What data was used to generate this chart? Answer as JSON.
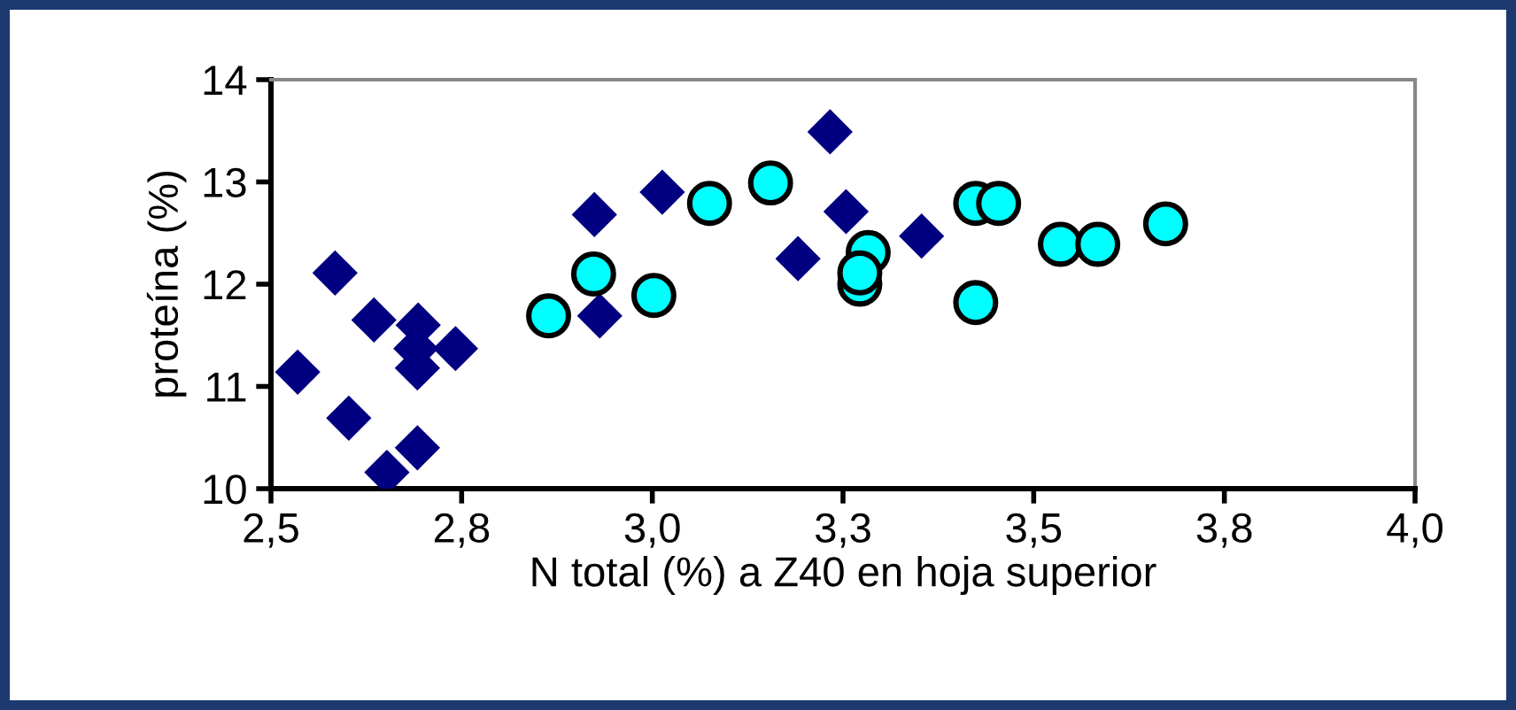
{
  "chart_data": {
    "type": "scatter",
    "xlabel": "N total (%) a Z40 en hoja superior",
    "ylabel": "proteína (%)",
    "xlim": [
      2.5,
      4.0
    ],
    "ylim": [
      10,
      14
    ],
    "xticks": [
      {
        "value": 2.5,
        "label": "2,5"
      },
      {
        "value": 2.75,
        "label": "2,8"
      },
      {
        "value": 3.0,
        "label": "3,0"
      },
      {
        "value": 3.25,
        "label": "3,3"
      },
      {
        "value": 3.5,
        "label": "3,5"
      },
      {
        "value": 3.75,
        "label": "3,8"
      },
      {
        "value": 4.0,
        "label": "4,0"
      }
    ],
    "yticks": [
      10,
      11,
      12,
      13,
      14
    ],
    "grid": false,
    "series": [
      {
        "color": "#000080",
        "marker": "diamond",
        "x": [
          2.535,
          2.584,
          2.635,
          2.693,
          2.692,
          2.69,
          2.742,
          2.602,
          2.652,
          2.692,
          2.924,
          2.931,
          3.013,
          3.233,
          3.254,
          3.191,
          3.353
        ],
        "values": [
          11.14,
          12.11,
          11.65,
          11.6,
          11.18,
          11.37,
          11.37,
          10.69,
          10.16,
          10.4,
          12.68,
          11.69,
          12.9,
          13.49,
          12.71,
          12.25,
          12.47
        ]
      },
      {
        "color": "#00ffff",
        "marker": "circle",
        "x": [
          2.864,
          2.923,
          3.002,
          3.075,
          3.155,
          3.283,
          3.272,
          3.272,
          3.424,
          3.454,
          3.424,
          3.535,
          3.584,
          3.673
        ],
        "values": [
          11.69,
          12.1,
          11.89,
          12.79,
          12.99,
          12.31,
          12.0,
          12.11,
          12.79,
          12.79,
          11.82,
          12.39,
          12.39,
          12.59
        ]
      }
    ]
  }
}
